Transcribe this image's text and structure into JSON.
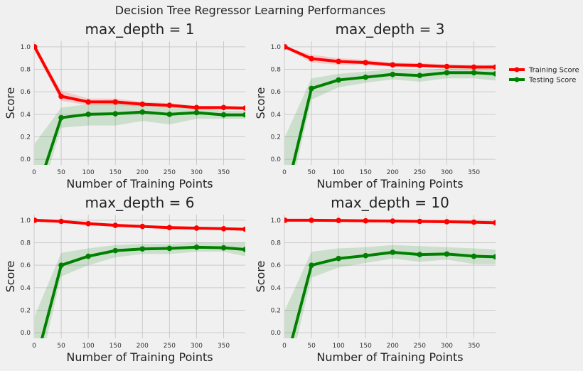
{
  "suptitle": "Decision Tree Regressor Learning Performances",
  "colors": {
    "training": "#ff0000",
    "testing": "#008000",
    "band_training": "#ff0000",
    "band_testing": "#008000",
    "grid": "#cbcbcb",
    "plot_bg": "#f0f0f0"
  },
  "legend": {
    "placement": "right, outside subplots",
    "items": [
      "Training Score",
      "Testing Score"
    ]
  },
  "chart_data": [
    {
      "type": "line",
      "title": "max_depth = 1",
      "xlabel": "Number of Training Points",
      "ylabel": "Score",
      "xlim": [
        0,
        390
      ],
      "ylim": [
        -0.05,
        1.05
      ],
      "xticks": [
        "0",
        "50",
        "100",
        "150",
        "200",
        "250",
        "300",
        "350"
      ],
      "yticks": [
        "0.0",
        "0.2",
        "0.4",
        "0.6",
        "0.8",
        "1.0"
      ],
      "grid": true,
      "x": [
        1,
        50,
        100,
        150,
        200,
        250,
        300,
        350,
        390
      ],
      "series": [
        {
          "name": "Training Score",
          "values": [
            1.0,
            0.56,
            0.51,
            0.51,
            0.49,
            0.48,
            0.46,
            0.46,
            0.455
          ],
          "lower": [
            0.96,
            0.52,
            0.48,
            0.48,
            0.47,
            0.46,
            0.445,
            0.445,
            0.44
          ],
          "upper": [
            1.0,
            0.61,
            0.54,
            0.54,
            0.51,
            0.5,
            0.475,
            0.475,
            0.47
          ]
        },
        {
          "name": "Testing Score",
          "values": [
            -0.35,
            0.37,
            0.4,
            0.405,
            0.42,
            0.4,
            0.415,
            0.395,
            0.395
          ],
          "lower": [
            -0.5,
            0.28,
            0.3,
            0.3,
            0.34,
            0.31,
            0.36,
            0.36,
            0.36
          ],
          "upper": [
            0.14,
            0.46,
            0.49,
            0.5,
            0.49,
            0.47,
            0.465,
            0.43,
            0.43
          ]
        }
      ]
    },
    {
      "type": "line",
      "title": "max_depth = 3",
      "xlabel": "Number of Training Points",
      "ylabel": "Score",
      "xlim": [
        0,
        390
      ],
      "ylim": [
        -0.05,
        1.05
      ],
      "xticks": [
        "0",
        "50",
        "100",
        "150",
        "200",
        "250",
        "300",
        "350"
      ],
      "yticks": [
        "0.0",
        "0.2",
        "0.4",
        "0.6",
        "0.8",
        "1.0"
      ],
      "grid": true,
      "x": [
        1,
        50,
        100,
        150,
        200,
        250,
        300,
        350,
        390
      ],
      "series": [
        {
          "name": "Training Score",
          "values": [
            1.0,
            0.895,
            0.87,
            0.86,
            0.84,
            0.835,
            0.825,
            0.82,
            0.82
          ],
          "lower": [
            0.99,
            0.86,
            0.84,
            0.84,
            0.82,
            0.82,
            0.81,
            0.805,
            0.805
          ],
          "upper": [
            1.0,
            0.93,
            0.9,
            0.885,
            0.86,
            0.855,
            0.845,
            0.84,
            0.84
          ]
        },
        {
          "name": "Testing Score",
          "values": [
            -0.35,
            0.63,
            0.705,
            0.73,
            0.755,
            0.745,
            0.77,
            0.77,
            0.76
          ],
          "lower": [
            -0.5,
            0.53,
            0.64,
            0.68,
            0.71,
            0.69,
            0.72,
            0.72,
            0.7
          ],
          "upper": [
            0.2,
            0.72,
            0.76,
            0.78,
            0.8,
            0.79,
            0.81,
            0.82,
            0.81
          ]
        }
      ]
    },
    {
      "type": "line",
      "title": "max_depth = 6",
      "xlabel": "Number of Training Points",
      "ylabel": "Score",
      "xlim": [
        0,
        390
      ],
      "ylim": [
        -0.05,
        1.05
      ],
      "xticks": [
        "0",
        "50",
        "100",
        "150",
        "200",
        "250",
        "300",
        "350"
      ],
      "yticks": [
        "0.0",
        "0.2",
        "0.4",
        "0.6",
        "0.8",
        "1.0"
      ],
      "grid": true,
      "x": [
        1,
        50,
        100,
        150,
        200,
        250,
        300,
        350,
        390
      ],
      "series": [
        {
          "name": "Training Score",
          "values": [
            1.0,
            0.99,
            0.97,
            0.955,
            0.945,
            0.935,
            0.93,
            0.925,
            0.92
          ],
          "lower": [
            1.0,
            0.98,
            0.955,
            0.945,
            0.935,
            0.925,
            0.92,
            0.915,
            0.91
          ],
          "upper": [
            1.0,
            1.0,
            0.985,
            0.965,
            0.955,
            0.945,
            0.94,
            0.935,
            0.93
          ]
        },
        {
          "name": "Testing Score",
          "values": [
            -0.3,
            0.6,
            0.68,
            0.73,
            0.745,
            0.75,
            0.76,
            0.755,
            0.74
          ],
          "lower": [
            -0.5,
            0.5,
            0.6,
            0.67,
            0.7,
            0.7,
            0.72,
            0.72,
            0.68
          ],
          "upper": [
            0.15,
            0.71,
            0.75,
            0.78,
            0.79,
            0.79,
            0.8,
            0.8,
            0.8
          ]
        }
      ]
    },
    {
      "type": "line",
      "title": "max_depth = 10",
      "xlabel": "Number of Training Points",
      "ylabel": "Score",
      "xlim": [
        0,
        390
      ],
      "ylim": [
        -0.05,
        1.05
      ],
      "xticks": [
        "0",
        "50",
        "100",
        "150",
        "200",
        "250",
        "300",
        "350"
      ],
      "yticks": [
        "0.0",
        "0.2",
        "0.4",
        "0.6",
        "0.8",
        "1.0"
      ],
      "grid": true,
      "x": [
        1,
        50,
        100,
        150,
        200,
        250,
        300,
        350,
        390
      ],
      "series": [
        {
          "name": "Training Score",
          "values": [
            1.0,
            1.0,
            0.998,
            0.995,
            0.993,
            0.99,
            0.987,
            0.983,
            0.978
          ],
          "lower": [
            1.0,
            1.0,
            0.995,
            0.99,
            0.988,
            0.985,
            0.98,
            0.975,
            0.97
          ],
          "upper": [
            1.0,
            1.0,
            1.0,
            1.0,
            0.998,
            0.995,
            0.993,
            0.99,
            0.985
          ]
        },
        {
          "name": "Testing Score",
          "values": [
            -0.3,
            0.6,
            0.66,
            0.685,
            0.715,
            0.695,
            0.7,
            0.68,
            0.675
          ],
          "lower": [
            -0.5,
            0.49,
            0.58,
            0.62,
            0.66,
            0.63,
            0.65,
            0.61,
            0.61
          ],
          "upper": [
            0.2,
            0.72,
            0.75,
            0.76,
            0.78,
            0.77,
            0.76,
            0.75,
            0.74
          ]
        }
      ]
    }
  ]
}
